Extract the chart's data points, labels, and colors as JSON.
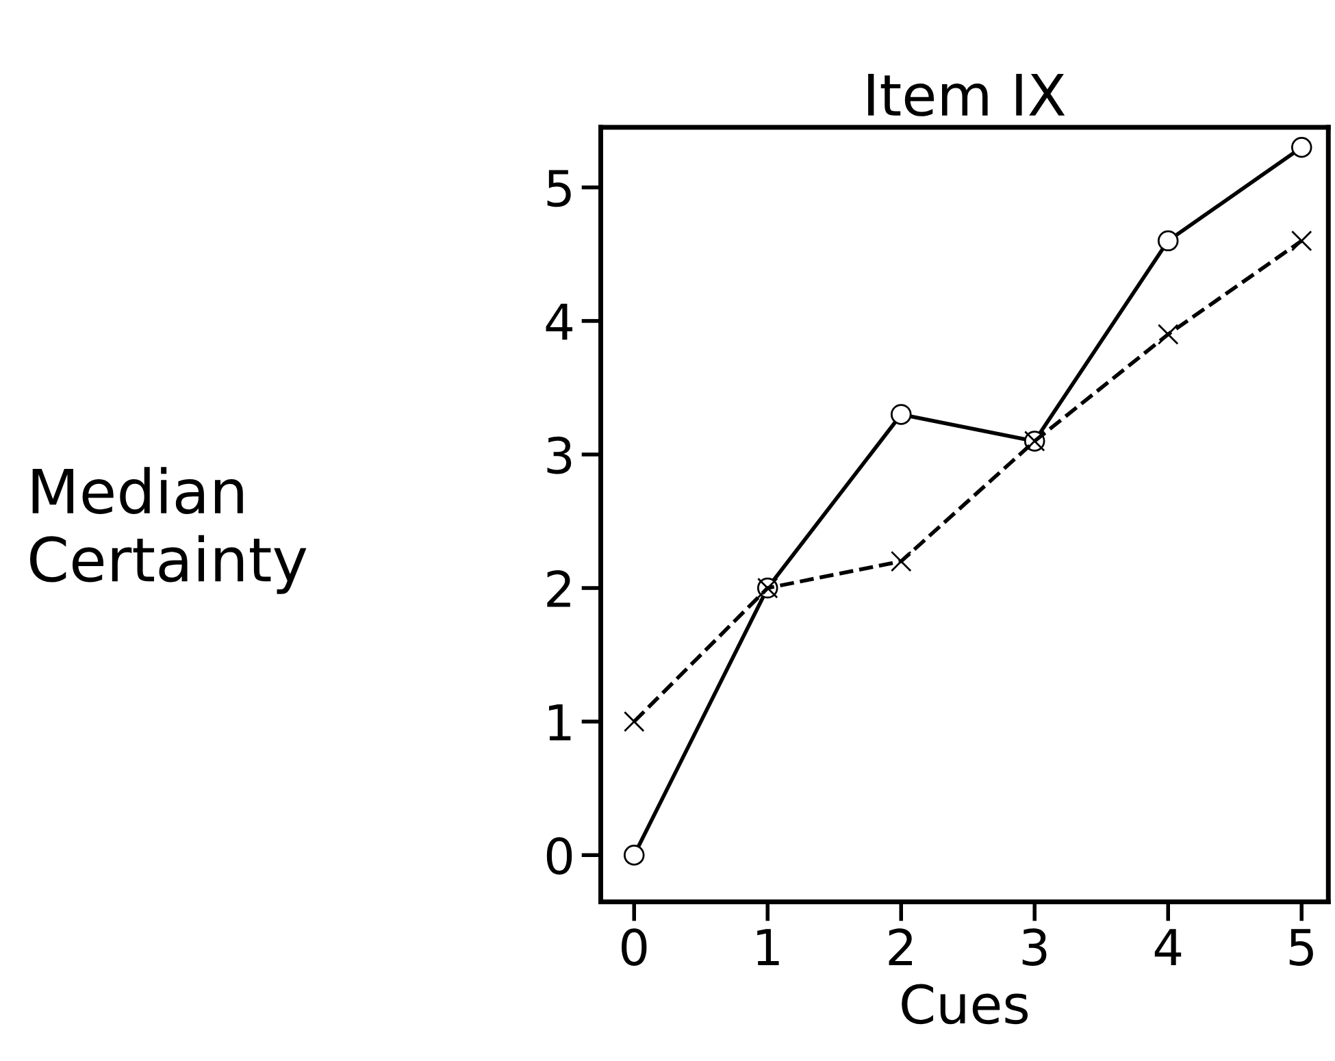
{
  "chart_data": {
    "type": "line",
    "title": "Item IX",
    "xlabel": "Cues",
    "ylabel": "Median\nCertainty",
    "x": [
      0,
      1,
      2,
      3,
      4,
      5
    ],
    "series": [
      {
        "color": "#000000",
        "values": [
          0,
          2,
          3.3,
          3.1,
          4.6,
          5.3
        ],
        "marker": "circle",
        "line_style": "solid"
      },
      {
        "color": "#000000",
        "values": [
          1,
          2,
          2.2,
          3.1,
          3.9,
          4.6
        ],
        "marker": "cross",
        "line_style": "dashed"
      }
    ],
    "xlim": [
      -0.25,
      5.2
    ],
    "ylim": [
      -0.35,
      5.45
    ],
    "xticks": [
      0,
      1,
      2,
      3,
      4,
      5
    ],
    "yticks": [
      0,
      1,
      2,
      3,
      4,
      5
    ],
    "grid": false,
    "legend": false
  }
}
